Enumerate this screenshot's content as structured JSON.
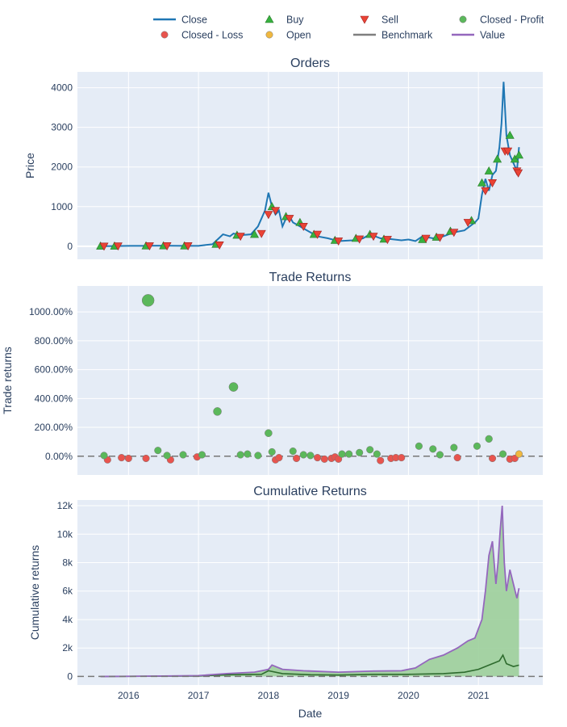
{
  "legend": [
    {
      "label": "Close",
      "symbol": "line",
      "color": "#1f77b4"
    },
    {
      "label": "Buy",
      "symbol": "triangle-up",
      "color": "#37b13f"
    },
    {
      "label": "Sell",
      "symbol": "triangle-down",
      "color": "#ea4335"
    },
    {
      "label": "Closed - Profit",
      "symbol": "circle",
      "color": "#5bb85b"
    },
    {
      "label": "Closed - Loss",
      "symbol": "circle",
      "color": "#e8544e"
    },
    {
      "label": "Open",
      "symbol": "circle",
      "color": "#f0b840"
    },
    {
      "label": "Benchmark",
      "symbol": "line",
      "color": "#7f7f7f"
    },
    {
      "label": "Value",
      "symbol": "line",
      "color": "#9467bd"
    }
  ],
  "colors": {
    "plot_bg": "#e5ecf6",
    "grid": "#ffffff",
    "text": "#2a3f5f",
    "close": "#1f77b4",
    "buy": "#37b13f",
    "sell": "#ea4335",
    "profit": "#5bb85b",
    "loss": "#e8544e",
    "open": "#f0b840",
    "benchmark": "#2e6b2e",
    "value": "#9467bd",
    "fill": "#9ccf9a"
  },
  "chart_data": [
    {
      "type": "line",
      "title": "Orders",
      "xlabel": "",
      "ylabel": "Price",
      "ylim": [
        -330,
        4400
      ],
      "xlim": [
        2015.27,
        2021.92
      ],
      "yticks": [
        0,
        1000,
        2000,
        3000,
        4000
      ],
      "ytick_labels": [
        "0",
        "1000",
        "2000",
        "3000",
        "4000"
      ],
      "series": [
        {
          "name": "Close",
          "x": [
            2015.6,
            2015.8,
            2016.0,
            2016.2,
            2016.4,
            2016.6,
            2016.8,
            2017.0,
            2017.2,
            2017.35,
            2017.45,
            2017.5,
            2017.6,
            2017.75,
            2017.85,
            2017.95,
            2018.0,
            2018.05,
            2018.1,
            2018.15,
            2018.2,
            2018.25,
            2018.3,
            2018.35,
            2018.45,
            2018.55,
            2018.7,
            2018.85,
            2019.0,
            2019.2,
            2019.35,
            2019.45,
            2019.6,
            2019.75,
            2019.9,
            2020.0,
            2020.1,
            2020.2,
            2020.35,
            2020.5,
            2020.65,
            2020.8,
            2020.95,
            2021.0,
            2021.05,
            2021.1,
            2021.15,
            2021.2,
            2021.25,
            2021.3,
            2021.33,
            2021.36,
            2021.4,
            2021.45,
            2021.5,
            2021.55,
            2021.58
          ],
          "y": [
            0,
            5,
            8,
            10,
            15,
            12,
            10,
            10,
            50,
            300,
            250,
            320,
            280,
            300,
            500,
            900,
            1350,
            1000,
            800,
            900,
            500,
            700,
            750,
            600,
            500,
            400,
            250,
            200,
            130,
            150,
            200,
            300,
            200,
            180,
            150,
            170,
            130,
            250,
            200,
            250,
            350,
            400,
            600,
            700,
            1300,
            1700,
            1400,
            1800,
            1900,
            2500,
            3100,
            4150,
            2800,
            2300,
            2100,
            1900,
            2500
          ]
        }
      ],
      "buy": {
        "x": [
          2015.6,
          2015.8,
          2016.25,
          2016.5,
          2016.8,
          2017.25,
          2017.55,
          2017.8,
          2018.05,
          2018.25,
          2018.45,
          2018.65,
          2018.95,
          2019.25,
          2019.45,
          2019.65,
          2020.2,
          2020.4,
          2020.6,
          2020.9,
          2021.05,
          2021.15,
          2021.27,
          2021.45,
          2021.52,
          2021.58
        ],
        "y": [
          5,
          5,
          10,
          12,
          10,
          50,
          280,
          300,
          1000,
          750,
          600,
          300,
          150,
          200,
          300,
          180,
          170,
          230,
          380,
          650,
          1600,
          1900,
          2200,
          2800,
          2200,
          2300
        ]
      },
      "sell": {
        "x": [
          2015.65,
          2015.85,
          2016.3,
          2016.55,
          2016.85,
          2017.3,
          2017.6,
          2017.9,
          2018.0,
          2018.1,
          2018.3,
          2018.5,
          2018.7,
          2019.0,
          2019.3,
          2019.5,
          2019.7,
          2020.25,
          2020.45,
          2020.65,
          2020.85,
          2021.1,
          2021.2,
          2021.38,
          2021.42,
          2021.55,
          2021.57
        ],
        "y": [
          0,
          5,
          8,
          10,
          10,
          30,
          250,
          320,
          800,
          900,
          700,
          500,
          300,
          130,
          180,
          250,
          170,
          200,
          220,
          350,
          600,
          1400,
          1600,
          2400,
          2400,
          1900,
          1850
        ]
      }
    },
    {
      "type": "scatter",
      "title": "Trade Returns",
      "xlabel": "",
      "ylabel": "Trade returns",
      "ylim": [
        -1.3,
        11.8
      ],
      "xlim": [
        2015.27,
        2021.92
      ],
      "yticks": [
        0,
        2,
        4,
        6,
        8,
        10
      ],
      "ytick_labels": [
        "0.00%",
        "200.00%",
        "400.00%",
        "600.00%",
        "800.00%",
        "1000.00%"
      ],
      "profit": {
        "x": [
          2015.65,
          2016.28,
          2016.42,
          2016.55,
          2016.78,
          2017.05,
          2017.27,
          2017.5,
          2017.6,
          2017.7,
          2017.85,
          2018.0,
          2018.05,
          2018.35,
          2018.5,
          2018.6,
          2019.05,
          2019.15,
          2019.3,
          2019.45,
          2019.55,
          2020.15,
          2020.35,
          2020.45,
          2020.65,
          2020.98,
          2021.15,
          2021.35
        ],
        "y": [
          0.05,
          10.8,
          0.4,
          0.05,
          0.1,
          0.1,
          3.1,
          4.8,
          0.1,
          0.15,
          0.05,
          1.6,
          0.3,
          0.35,
          0.1,
          0.05,
          0.15,
          0.15,
          0.25,
          0.45,
          0.15,
          0.7,
          0.5,
          0.1,
          0.6,
          0.7,
          1.2,
          0.15
        ]
      },
      "loss": {
        "x": [
          2015.7,
          2015.9,
          2016.0,
          2016.25,
          2016.6,
          2016.98,
          2018.1,
          2018.15,
          2018.4,
          2018.7,
          2018.8,
          2018.9,
          2018.95,
          2019.0,
          2019.6,
          2019.75,
          2019.82,
          2019.9,
          2020.7,
          2021.2,
          2021.45,
          2021.52
        ],
        "y": [
          -0.25,
          -0.1,
          -0.15,
          -0.15,
          -0.25,
          -0.05,
          -0.25,
          -0.1,
          -0.15,
          -0.1,
          -0.2,
          -0.15,
          -0.05,
          -0.2,
          -0.3,
          -0.15,
          -0.1,
          -0.1,
          -0.1,
          -0.15,
          -0.2,
          -0.15
        ]
      },
      "open": {
        "x": [
          2021.58
        ],
        "y": [
          0.15
        ]
      }
    },
    {
      "type": "area",
      "title": "Cumulative Returns",
      "xlabel": "Date",
      "ylabel": "Cumulative returns",
      "ylim": [
        -600,
        12400
      ],
      "xlim": [
        2015.27,
        2021.92
      ],
      "yticks": [
        0,
        2000,
        4000,
        6000,
        8000,
        10000,
        12000
      ],
      "ytick_labels": [
        "0",
        "2k",
        "4k",
        "6k",
        "8k",
        "10k",
        "12k"
      ],
      "xticks": [
        2016,
        2017,
        2018,
        2019,
        2020,
        2021
      ],
      "xtick_labels": [
        "2016",
        "2017",
        "2018",
        "2019",
        "2020",
        "2021"
      ],
      "series": [
        {
          "name": "Value",
          "x": [
            2015.6,
            2016.0,
            2016.5,
            2017.0,
            2017.4,
            2017.8,
            2018.0,
            2018.05,
            2018.2,
            2018.5,
            2019.0,
            2019.5,
            2019.9,
            2020.1,
            2020.3,
            2020.5,
            2020.7,
            2020.85,
            2020.95,
            2021.05,
            2021.1,
            2021.15,
            2021.2,
            2021.25,
            2021.28,
            2021.31,
            2021.34,
            2021.37,
            2021.4,
            2021.45,
            2021.5,
            2021.55,
            2021.58
          ],
          "y": [
            0,
            10,
            30,
            60,
            200,
            300,
            500,
            800,
            500,
            400,
            300,
            380,
            400,
            600,
            1200,
            1500,
            2000,
            2500,
            2700,
            4000,
            6000,
            8500,
            9500,
            6500,
            8000,
            10200,
            12000,
            8000,
            6000,
            7500,
            6500,
            5500,
            6200
          ]
        },
        {
          "name": "Benchmark",
          "x": [
            2015.6,
            2016.5,
            2017.0,
            2017.4,
            2017.9,
            2018.0,
            2018.2,
            2018.6,
            2019.0,
            2019.5,
            2020.0,
            2020.5,
            2020.8,
            2021.0,
            2021.1,
            2021.2,
            2021.3,
            2021.35,
            2021.4,
            2021.5,
            2021.58
          ],
          "y": [
            0,
            20,
            30,
            120,
            150,
            400,
            200,
            120,
            100,
            150,
            150,
            200,
            300,
            500,
            700,
            900,
            1100,
            1500,
            900,
            700,
            800
          ]
        }
      ]
    }
  ]
}
